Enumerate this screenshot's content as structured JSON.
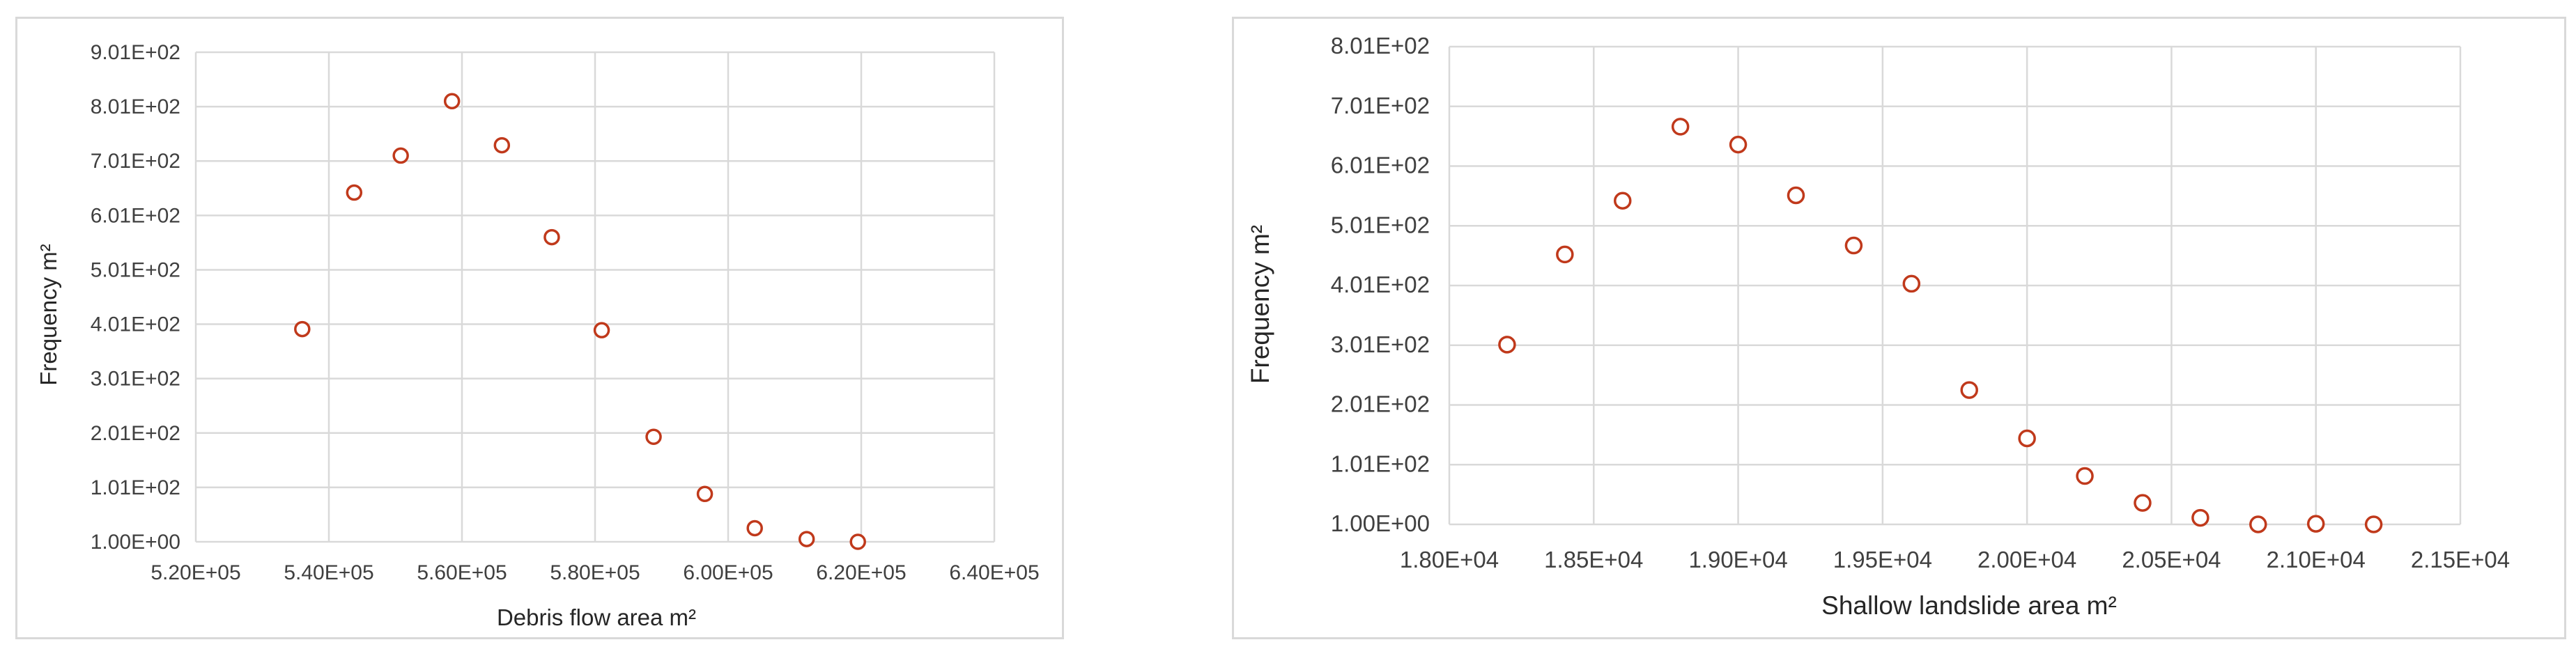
{
  "chart_data": [
    {
      "type": "scatter",
      "xlabel": "Debris flow area m²",
      "ylabel": "Frequency m²",
      "xlim": [
        520000,
        640000
      ],
      "ylim": [
        1,
        901
      ],
      "x_ticks": [
        "5.20E+05",
        "5.40E+05",
        "5.60E+05",
        "5.80E+05",
        "6.00E+05",
        "6.20E+05",
        "6.40E+05"
      ],
      "y_ticks": [
        "1.00E+00",
        "1.01E+02",
        "2.01E+02",
        "3.01E+02",
        "4.01E+02",
        "5.01E+02",
        "6.01E+02",
        "7.01E+02",
        "8.01E+02",
        "9.01E+02"
      ],
      "grid": true,
      "marker_color": "#c0391b",
      "points": [
        {
          "x": 536000,
          "y": 392
        },
        {
          "x": 543800,
          "y": 643
        },
        {
          "x": 550800,
          "y": 711
        },
        {
          "x": 558500,
          "y": 811
        },
        {
          "x": 566000,
          "y": 730
        },
        {
          "x": 573500,
          "y": 561
        },
        {
          "x": 581000,
          "y": 390
        },
        {
          "x": 588800,
          "y": 194
        },
        {
          "x": 596500,
          "y": 89
        },
        {
          "x": 604000,
          "y": 26
        },
        {
          "x": 611800,
          "y": 6
        },
        {
          "x": 619500,
          "y": 1
        }
      ]
    },
    {
      "type": "scatter",
      "xlabel": "Shallow landslide area m²",
      "ylabel": "Frequency m²",
      "xlim": [
        18000,
        21500
      ],
      "ylim": [
        1,
        801
      ],
      "x_ticks": [
        "1.80E+04",
        "1.85E+04",
        "1.90E+04",
        "1.95E+04",
        "2.00E+04",
        "2.05E+04",
        "2.10E+04",
        "2.15E+04"
      ],
      "y_ticks": [
        "1.00E+00",
        "1.01E+02",
        "2.01E+02",
        "3.01E+02",
        "4.01E+02",
        "5.01E+02",
        "6.01E+02",
        "7.01E+02",
        "8.01E+02"
      ],
      "grid": true,
      "marker_color": "#c0391b",
      "points": [
        {
          "x": 18200,
          "y": 302
        },
        {
          "x": 18400,
          "y": 453
        },
        {
          "x": 18600,
          "y": 543
        },
        {
          "x": 18800,
          "y": 667
        },
        {
          "x": 19000,
          "y": 637
        },
        {
          "x": 19200,
          "y": 552
        },
        {
          "x": 19400,
          "y": 468
        },
        {
          "x": 19600,
          "y": 404
        },
        {
          "x": 19800,
          "y": 226
        },
        {
          "x": 20000,
          "y": 145
        },
        {
          "x": 20200,
          "y": 82
        },
        {
          "x": 20400,
          "y": 37
        },
        {
          "x": 20600,
          "y": 12
        },
        {
          "x": 20800,
          "y": 1
        },
        {
          "x": 21000,
          "y": 2
        },
        {
          "x": 21200,
          "y": 1
        }
      ]
    }
  ]
}
